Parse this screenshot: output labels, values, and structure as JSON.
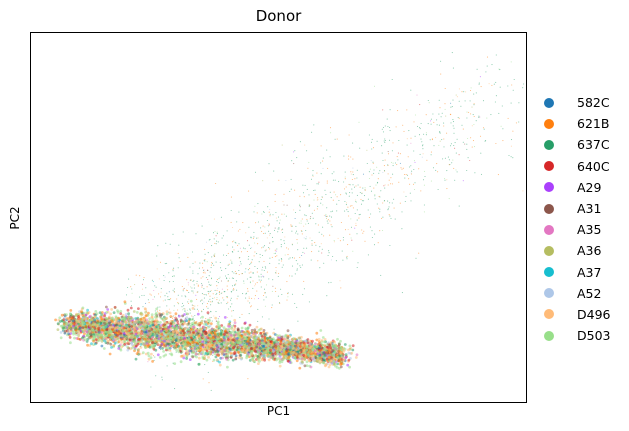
{
  "chart_data": {
    "type": "scatter",
    "title": "Donor",
    "xlabel": "PC1",
    "ylabel": "PC2",
    "xlim": [
      -4,
      23
    ],
    "ylim": [
      -4,
      14
    ],
    "grid": false,
    "legend_placement": "right",
    "tick_labels": false,
    "series": [
      {
        "name": "582C",
        "color": "#1f77b4"
      },
      {
        "name": "621B",
        "color": "#ff7f0e"
      },
      {
        "name": "637C",
        "color": "#279e68"
      },
      {
        "name": "640C",
        "color": "#d62728"
      },
      {
        "name": "A29",
        "color": "#aa40fc"
      },
      {
        "name": "A31",
        "color": "#8c564b"
      },
      {
        "name": "A35",
        "color": "#e377c2"
      },
      {
        "name": "A36",
        "color": "#b5bd61"
      },
      {
        "name": "A37",
        "color": "#17becf"
      },
      {
        "name": "A52",
        "color": "#aec7e8"
      },
      {
        "name": "D496",
        "color": "#ffbb78"
      },
      {
        "name": "D503",
        "color": "#98df8a"
      }
    ]
  }
}
